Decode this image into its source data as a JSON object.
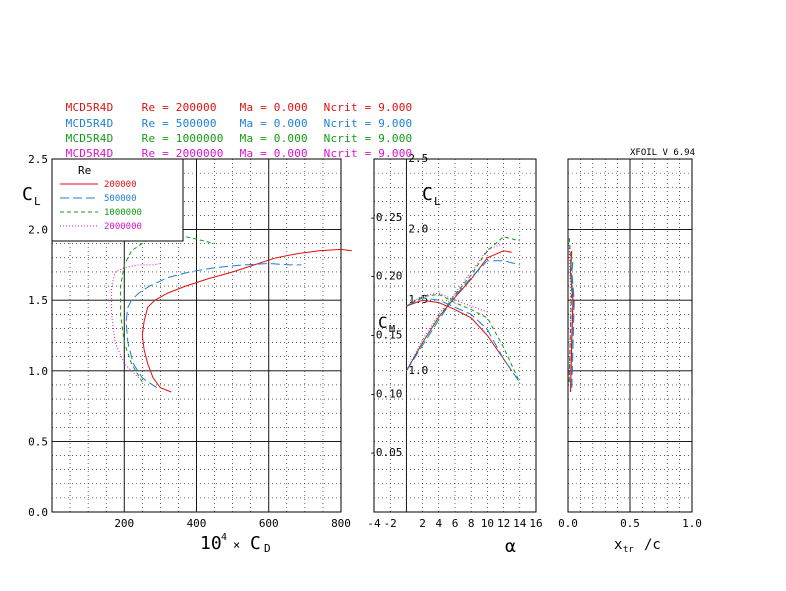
{
  "version_label": "XFOIL V 6.94",
  "runs": [
    {
      "airfoil": "MCD5R4D",
      "re": "Re = 200000",
      "ma": "Ma = 0.000",
      "ncrit": "Ncrit = 9.000",
      "color": "#dd1111"
    },
    {
      "airfoil": "MCD5R4D",
      "re": "Re = 500000",
      "ma": "Ma = 0.000",
      "ncrit": "Ncrit = 9.000",
      "color": "#1c7fd6"
    },
    {
      "airfoil": "MCD5R4D",
      "re": "Re = 1000000",
      "ma": "Ma = 0.000",
      "ncrit": "Ncrit = 9.000",
      "color": "#129c12"
    },
    {
      "airfoil": "MCD5R4D",
      "re": "Re = 2000000",
      "ma": "Ma = 0.000",
      "ncrit": "Ncrit = 9.000",
      "color": "#dd11cc"
    }
  ],
  "chart_data": [
    {
      "type": "line",
      "name": "drag-polar",
      "xlabel": "10⁴ × C_D",
      "ylabel": "C_L",
      "xlim": [
        0,
        800
      ],
      "ylim": [
        0,
        2.5
      ],
      "x_ticks": [
        "200",
        "400",
        "600",
        "800"
      ],
      "y_ticks": [
        "0.0",
        "0.5",
        "1.0",
        "1.5",
        "2.0",
        "2.5"
      ],
      "legend": {
        "title": "Re",
        "position": "top-left",
        "entries": [
          "200000",
          "500000",
          "1000000",
          "2000000"
        ]
      },
      "series": [
        {
          "name": "200000",
          "color": "#dd1111",
          "dash": "solid",
          "x": [
            330,
            300,
            280,
            265,
            255,
            250,
            255,
            265,
            285,
            320,
            370,
            430,
            500,
            560,
            620,
            680,
            740,
            800,
            830
          ],
          "y": [
            0.85,
            0.88,
            0.95,
            1.05,
            1.15,
            1.25,
            1.35,
            1.45,
            1.5,
            1.55,
            1.6,
            1.65,
            1.7,
            1.75,
            1.8,
            1.83,
            1.85,
            1.86,
            1.85
          ]
        },
        {
          "name": "500000",
          "color": "#1c7fd6",
          "dash": "long-dash",
          "x": [
            290,
            250,
            225,
            210,
            205,
            210,
            220,
            240,
            270,
            320,
            380,
            450,
            530,
            600,
            660,
            690
          ],
          "y": [
            0.88,
            0.95,
            1.05,
            1.2,
            1.35,
            1.45,
            1.5,
            1.55,
            1.6,
            1.66,
            1.7,
            1.73,
            1.75,
            1.76,
            1.75,
            1.75
          ]
        },
        {
          "name": "1000000",
          "color": "#129c12",
          "dash": "dash",
          "x": [
            250,
            220,
            200,
            190,
            190,
            200,
            220,
            260,
            310,
            370,
            420,
            450
          ],
          "y": [
            0.92,
            1.05,
            1.2,
            1.4,
            1.6,
            1.75,
            1.85,
            1.92,
            1.95,
            1.95,
            1.92,
            1.9
          ]
        },
        {
          "name": "2000000",
          "color": "#dd11cc",
          "dash": "dot",
          "x": [
            240,
            200,
            175,
            165,
            165,
            175,
            200,
            240,
            280,
            300
          ],
          "y": [
            0.95,
            1.05,
            1.2,
            1.4,
            1.6,
            1.7,
            1.73,
            1.75,
            1.75,
            1.76
          ]
        }
      ]
    },
    {
      "type": "line",
      "name": "lift-and-moment-vs-alpha",
      "xlabel": "α",
      "ylabel": "C_L",
      "ylabel_secondary": "C_M",
      "xlim": [
        -4,
        16
      ],
      "ylim": [
        0,
        2.5
      ],
      "cm_lim": [
        0,
        0.3
      ],
      "x_ticks": [
        "-4",
        "-2",
        "2",
        "4",
        "6",
        "8",
        "10",
        "12",
        "14",
        "16"
      ],
      "y_ticks": [
        "1.0",
        "1.5",
        "2.0",
        "2.5"
      ],
      "cm_ticks": [
        "-0.05",
        "-0.10",
        "-0.15",
        "-0.20",
        "-0.25"
      ],
      "series": [
        {
          "name": "200000",
          "color": "#dd1111",
          "dash": "solid",
          "metric": "CL",
          "x": [
            0,
            2,
            4,
            6,
            8,
            10,
            12,
            13
          ],
          "y": [
            1.0,
            1.2,
            1.38,
            1.52,
            1.65,
            1.8,
            1.85,
            1.84
          ]
        },
        {
          "name": "500000",
          "color": "#1c7fd6",
          "dash": "long-dash",
          "metric": "CL",
          "x": [
            0,
            2,
            4,
            6,
            8,
            10,
            12,
            14
          ],
          "y": [
            1.0,
            1.18,
            1.36,
            1.53,
            1.66,
            1.78,
            1.78,
            1.75
          ]
        },
        {
          "name": "1000000",
          "color": "#129c12",
          "dash": "dash",
          "metric": "CL",
          "x": [
            0,
            2,
            4,
            6,
            8,
            10,
            12,
            14
          ],
          "y": [
            1.0,
            1.2,
            1.38,
            1.54,
            1.68,
            1.85,
            1.95,
            1.92
          ]
        },
        {
          "name": "2000000",
          "color": "#dd11cc",
          "dash": "dot",
          "metric": "CL",
          "x": [
            0,
            2,
            4,
            6,
            8,
            10,
            12
          ],
          "y": [
            1.0,
            1.22,
            1.4,
            1.55,
            1.7,
            1.86,
            1.9
          ]
        },
        {
          "name": "200000",
          "color": "#dd1111",
          "dash": "solid",
          "metric": "CM",
          "x": [
            0,
            2,
            4,
            6,
            8,
            10,
            12,
            13
          ],
          "y": [
            0.175,
            0.18,
            0.178,
            0.172,
            0.165,
            0.15,
            0.13,
            0.12
          ]
        },
        {
          "name": "500000",
          "color": "#1c7fd6",
          "dash": "long-dash",
          "metric": "CM",
          "x": [
            0,
            2,
            4,
            6,
            8,
            10,
            12,
            14
          ],
          "y": [
            0.175,
            0.182,
            0.18,
            0.174,
            0.168,
            0.155,
            0.13,
            0.11
          ]
        },
        {
          "name": "1000000",
          "color": "#129c12",
          "dash": "dash",
          "metric": "CM",
          "x": [
            0,
            2,
            4,
            6,
            8,
            10,
            12,
            14
          ],
          "y": [
            0.175,
            0.183,
            0.185,
            0.178,
            0.172,
            0.165,
            0.14,
            0.11
          ]
        },
        {
          "name": "2000000",
          "color": "#dd11cc",
          "dash": "dot",
          "metric": "CM",
          "x": [
            0,
            2,
            4,
            6,
            8,
            10
          ],
          "y": [
            0.175,
            0.184,
            0.186,
            0.18,
            0.175,
            0.17
          ]
        }
      ]
    },
    {
      "type": "scatter",
      "name": "transition-location",
      "xlabel": "x_tr / c",
      "xlim": [
        0,
        1.0
      ],
      "ylim": [
        0,
        2.5
      ],
      "x_ticks": [
        "0.0",
        "0.5",
        "1.0"
      ],
      "series": [
        {
          "name": "200000",
          "color": "#dd1111",
          "dash": "solid",
          "x": [
            0.02,
            0.03,
            0.04,
            0.02,
            0.03
          ],
          "y": [
            0.85,
            1.2,
            1.5,
            1.7,
            1.85
          ]
        },
        {
          "name": "500000",
          "color": "#1c7fd6",
          "dash": "long-dash",
          "x": [
            0.03,
            0.04,
            0.05,
            0.03,
            0.04
          ],
          "y": [
            0.88,
            1.2,
            1.5,
            1.7,
            1.78
          ]
        },
        {
          "name": "1000000",
          "color": "#129c12",
          "dash": "dash",
          "x": [
            0.01,
            0.02,
            0.03,
            0.02,
            0.01
          ],
          "y": [
            0.92,
            1.3,
            1.6,
            1.8,
            1.95
          ]
        },
        {
          "name": "2000000",
          "color": "#dd11cc",
          "dash": "dot",
          "x": [
            0.01,
            0.02,
            0.02,
            0.01
          ],
          "y": [
            0.95,
            1.3,
            1.6,
            1.9
          ]
        }
      ]
    }
  ]
}
